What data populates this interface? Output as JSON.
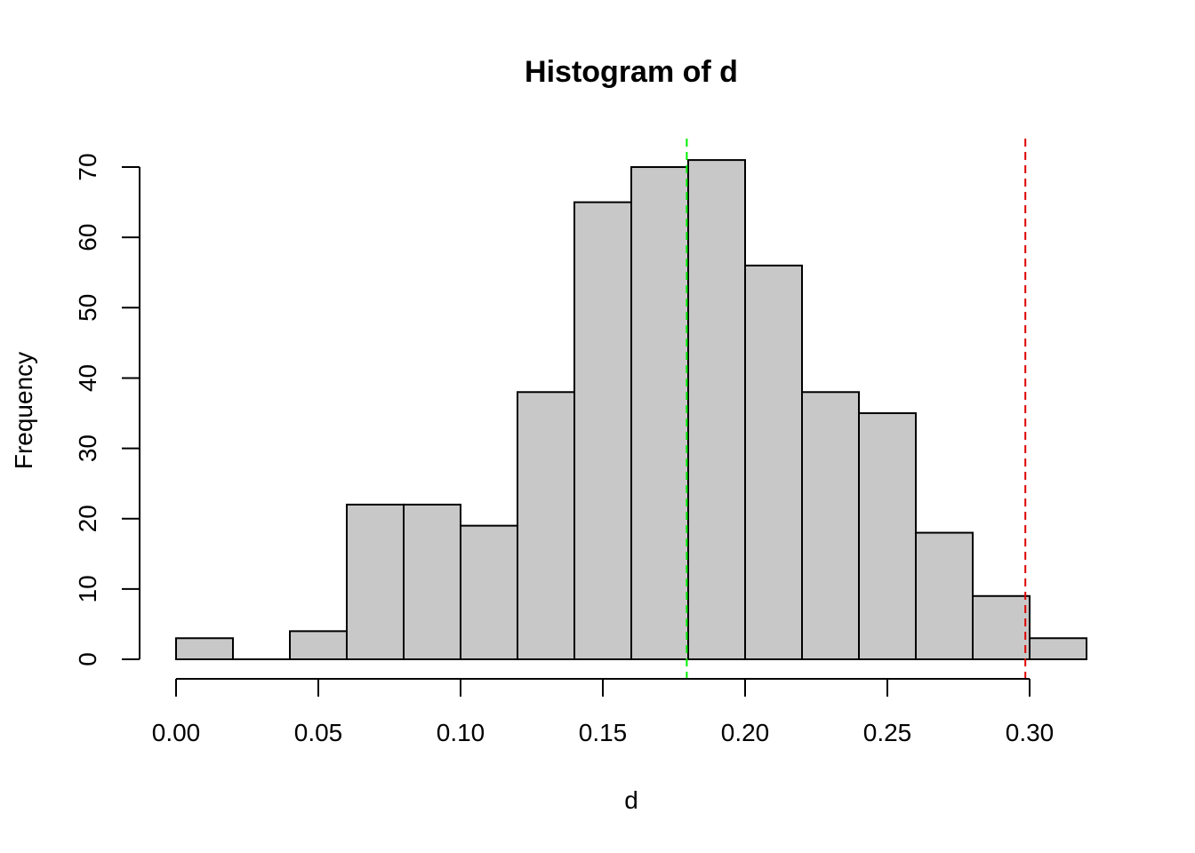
{
  "chart_data": {
    "type": "bar",
    "title": "Histogram of d",
    "xlabel": "d",
    "ylabel": "Frequency",
    "bins": [
      {
        "from": 0.0,
        "to": 0.02,
        "count": 3
      },
      {
        "from": 0.02,
        "to": 0.04,
        "count": 0
      },
      {
        "from": 0.04,
        "to": 0.06,
        "count": 4
      },
      {
        "from": 0.06,
        "to": 0.08,
        "count": 22
      },
      {
        "from": 0.08,
        "to": 0.1,
        "count": 22
      },
      {
        "from": 0.1,
        "to": 0.12,
        "count": 19
      },
      {
        "from": 0.12,
        "to": 0.14,
        "count": 38
      },
      {
        "from": 0.14,
        "to": 0.16,
        "count": 65
      },
      {
        "from": 0.16,
        "to": 0.18,
        "count": 70
      },
      {
        "from": 0.18,
        "to": 0.2,
        "count": 71
      },
      {
        "from": 0.2,
        "to": 0.22,
        "count": 56
      },
      {
        "from": 0.22,
        "to": 0.24,
        "count": 38
      },
      {
        "from": 0.24,
        "to": 0.26,
        "count": 35
      },
      {
        "from": 0.26,
        "to": 0.28,
        "count": 18
      },
      {
        "from": 0.28,
        "to": 0.3,
        "count": 9
      },
      {
        "from": 0.3,
        "to": 0.32,
        "count": 3
      }
    ],
    "x_ticks": [
      0.0,
      0.05,
      0.1,
      0.15,
      0.2,
      0.25,
      0.3
    ],
    "x_tick_labels": [
      "0.00",
      "0.05",
      "0.10",
      "0.15",
      "0.20",
      "0.25",
      "0.30"
    ],
    "y_ticks": [
      0,
      10,
      20,
      30,
      40,
      50,
      60,
      70
    ],
    "y_tick_labels": [
      "0",
      "10",
      "20",
      "30",
      "40",
      "50",
      "60",
      "70"
    ],
    "xlim": [
      0.0,
      0.32
    ],
    "ylim": [
      0,
      75
    ],
    "grid": false,
    "bar_color": "#c8c8c8",
    "reference_lines": [
      {
        "x": 0.1795,
        "color": "#00ee00",
        "style": "dashed"
      },
      {
        "x": 0.2985,
        "color": "#dd0000",
        "style": "dashed"
      }
    ]
  }
}
